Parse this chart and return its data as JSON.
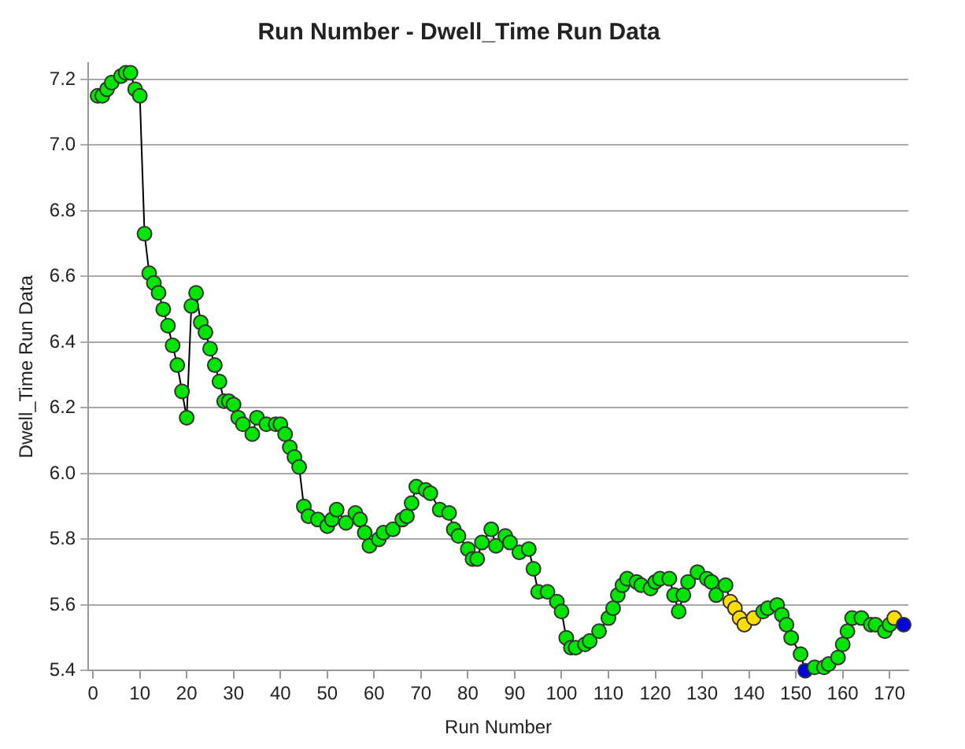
{
  "chart_data": {
    "type": "line",
    "title": "Run Number - Dwell_Time Run Data",
    "xlabel": "Run Number",
    "ylabel": "Dwell_Time Run Data",
    "xlim": [
      -1,
      174
    ],
    "xticks": [
      0,
      10,
      20,
      30,
      40,
      50,
      60,
      70,
      80,
      90,
      100,
      110,
      120,
      130,
      140,
      150,
      160,
      170
    ],
    "ylim": [
      5.4,
      7.25
    ],
    "yticks": [
      5.4,
      5.6,
      5.8,
      {
        "value": 6,
        "label": "6.0"
      },
      6.2,
      6.4,
      6.6,
      6.8,
      {
        "value": 7,
        "label": "7.0"
      },
      7.2
    ],
    "grid": "y",
    "legend": false,
    "marker": "circle",
    "line_style": "solid",
    "series": [
      {
        "color": "#000000",
        "x": [
          1,
          2,
          3,
          4,
          6,
          7,
          8,
          9,
          10,
          11,
          12,
          13,
          14,
          15,
          16,
          17,
          18,
          19,
          20,
          21,
          22,
          23,
          24,
          25,
          26,
          27,
          28,
          29,
          30,
          31,
          32,
          34,
          35,
          37,
          39,
          40,
          41,
          42,
          43,
          44,
          45,
          46,
          48,
          50,
          51,
          52,
          54,
          56,
          57,
          58,
          59,
          61,
          62,
          64,
          66,
          67,
          68,
          69,
          71,
          72,
          74,
          76,
          77,
          78,
          80,
          81,
          82,
          83,
          85,
          86,
          88,
          89,
          91,
          93,
          94,
          95,
          97,
          99,
          100,
          101,
          102,
          103,
          105,
          106,
          108,
          110,
          111,
          112,
          113,
          114,
          116,
          117,
          119,
          120,
          121,
          123,
          124,
          125,
          126,
          127,
          129,
          131,
          132,
          133,
          135,
          136,
          137,
          138,
          139,
          141,
          143,
          144,
          146,
          147,
          148,
          149,
          151,
          152,
          154,
          156,
          157,
          159,
          160,
          161,
          162,
          164,
          166,
          167,
          169,
          170,
          171,
          173
        ],
        "values": [
          7.15,
          7.15,
          7.17,
          7.19,
          7.21,
          7.22,
          7.22,
          7.17,
          7.15,
          6.73,
          6.61,
          6.58,
          6.55,
          6.5,
          6.45,
          6.39,
          6.33,
          6.25,
          6.17,
          6.51,
          6.55,
          6.46,
          6.43,
          6.38,
          6.33,
          6.28,
          6.22,
          6.22,
          6.21,
          6.17,
          6.15,
          6.12,
          6.17,
          6.15,
          6.15,
          6.15,
          6.12,
          6.08,
          6.05,
          6.02,
          5.9,
          5.87,
          5.86,
          5.84,
          5.86,
          5.89,
          5.85,
          5.88,
          5.86,
          5.82,
          5.78,
          5.8,
          5.82,
          5.83,
          5.86,
          5.87,
          5.91,
          5.96,
          5.95,
          5.94,
          5.89,
          5.88,
          5.83,
          5.81,
          5.77,
          5.74,
          5.74,
          5.79,
          5.83,
          5.78,
          5.81,
          5.79,
          5.76,
          5.77,
          5.71,
          5.64,
          5.64,
          5.61,
          5.58,
          5.5,
          5.47,
          5.47,
          5.48,
          5.49,
          5.52,
          5.56,
          5.59,
          5.63,
          5.66,
          5.68,
          5.67,
          5.66,
          5.65,
          5.67,
          5.68,
          5.68,
          5.63,
          5.58,
          5.63,
          5.67,
          5.7,
          5.68,
          5.67,
          5.63,
          5.66,
          5.61,
          5.59,
          5.56,
          5.54,
          5.56,
          5.58,
          5.59,
          5.6,
          5.57,
          5.54,
          5.5,
          5.45,
          5.4,
          5.41,
          5.41,
          5.42,
          5.44,
          5.48,
          5.52,
          5.56,
          5.56,
          5.54,
          5.54,
          5.52,
          5.54,
          5.56,
          5.54
        ],
        "colors": [
          "#00e600",
          "#00e600",
          "#00e600",
          "#00e600",
          "#00e600",
          "#00e600",
          "#00e600",
          "#00e600",
          "#00e600",
          "#00e600",
          "#00e600",
          "#00e600",
          "#00e600",
          "#00e600",
          "#00e600",
          "#00e600",
          "#00e600",
          "#00e600",
          "#00e600",
          "#00e600",
          "#00e600",
          "#00e600",
          "#00e600",
          "#00e600",
          "#00e600",
          "#00e600",
          "#00e600",
          "#00e600",
          "#00e600",
          "#00e600",
          "#00e600",
          "#00e600",
          "#00e600",
          "#00e600",
          "#00e600",
          "#00e600",
          "#00e600",
          "#00e600",
          "#00e600",
          "#00e600",
          "#00e600",
          "#00e600",
          "#00e600",
          "#00e600",
          "#00e600",
          "#00e600",
          "#00e600",
          "#00e600",
          "#00e600",
          "#00e600",
          "#00e600",
          "#00e600",
          "#00e600",
          "#00e600",
          "#00e600",
          "#00e600",
          "#00e600",
          "#00e600",
          "#00e600",
          "#00e600",
          "#00e600",
          "#00e600",
          "#00e600",
          "#00e600",
          "#00e600",
          "#00e600",
          "#00e600",
          "#00e600",
          "#00e600",
          "#00e600",
          "#00e600",
          "#00e600",
          "#00e600",
          "#00e600",
          "#00e600",
          "#00e600",
          "#00e600",
          "#00e600",
          "#00e600",
          "#00e600",
          "#00e600",
          "#00e600",
          "#00e600",
          "#00e600",
          "#00e600",
          "#00e600",
          "#00e600",
          "#00e600",
          "#00e600",
          "#00e600",
          "#00e600",
          "#00e600",
          "#00e600",
          "#00e600",
          "#00e600",
          "#00e600",
          "#00e600",
          "#00e600",
          "#00e600",
          "#00e600",
          "#00e600",
          "#00e600",
          "#00e600",
          "#00e600",
          "#00e600",
          "#ffdd00",
          "#ffdd00",
          "#ffdd00",
          "#ffdd00",
          "#ffdd00",
          "#00e600",
          "#00e600",
          "#00e600",
          "#00e600",
          "#00e600",
          "#00e600",
          "#00e600",
          "#0000dd",
          "#00e600",
          "#00e600",
          "#00e600",
          "#00e600",
          "#00e600",
          "#00e600",
          "#00e600",
          "#00e600",
          "#00e600",
          "#00e600",
          "#00e600",
          "#00e600",
          "#ffdd00",
          "#0000dd"
        ]
      }
    ]
  }
}
